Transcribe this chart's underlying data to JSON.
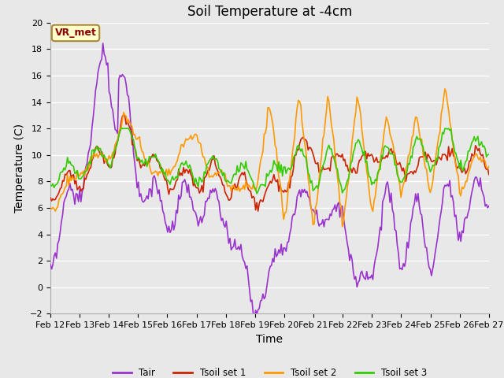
{
  "title": "Soil Temperature at -4cm",
  "xlabel": "Time",
  "ylabel": "Temperature (C)",
  "ylim": [
    -2,
    20
  ],
  "yticks": [
    -2,
    0,
    2,
    4,
    6,
    8,
    10,
    12,
    14,
    16,
    18,
    20
  ],
  "plot_bg_color": "#e8e8e8",
  "grid_color": "#ffffff",
  "series": {
    "Tair": {
      "color": "#9933cc",
      "linewidth": 1.2
    },
    "Tsoil set 1": {
      "color": "#cc2200",
      "linewidth": 1.2
    },
    "Tsoil set 2": {
      "color": "#ff9900",
      "linewidth": 1.2
    },
    "Tsoil set 3": {
      "color": "#33cc00",
      "linewidth": 1.2
    }
  },
  "xtick_labels": [
    "Feb 12",
    "Feb 13",
    "Feb 14",
    "Feb 15",
    "Feb 16",
    "Feb 17",
    "Feb 18",
    "Feb 19",
    "Feb 20",
    "Feb 21",
    "Feb 22",
    "Feb 23",
    "Feb 24",
    "Feb 25",
    "Feb 26",
    "Feb 27"
  ],
  "annotation_text": "VR_met",
  "annotation_bg": "#ffffcc",
  "annotation_border": "#aa8833",
  "title_fontsize": 12,
  "label_fontsize": 10,
  "tick_fontsize": 8
}
